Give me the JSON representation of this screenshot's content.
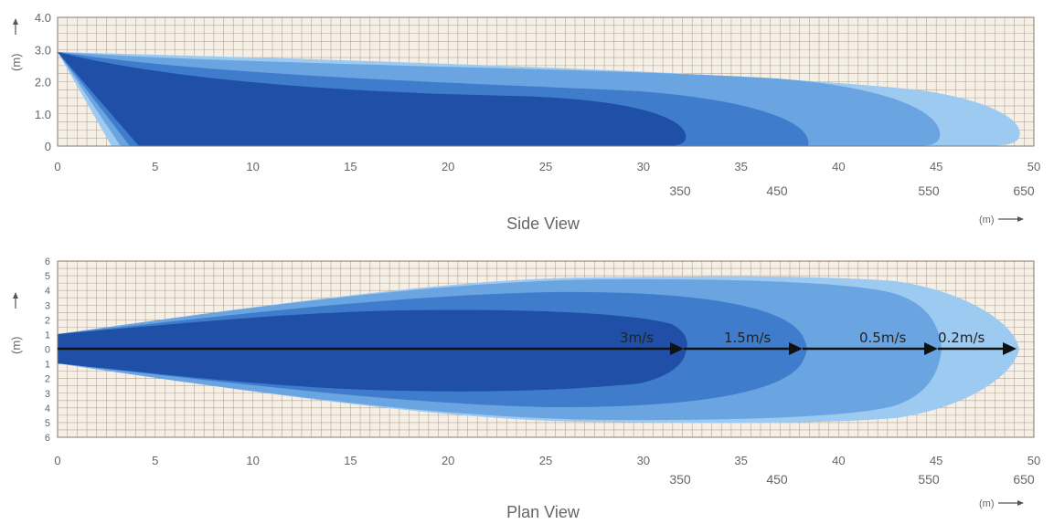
{
  "colors": {
    "grid_line": "#9a8a7a",
    "background": "#f5efe6",
    "zone_3": "#1f4fa6",
    "zone_1_5": "#3f7dcc",
    "zone_0_5": "#6aa5e2",
    "zone_0_2": "#9dcaf1",
    "arrow": "#111111"
  },
  "side_view": {
    "title": "Side View",
    "y_unit": "(m)",
    "y_ticks": [
      "4.0",
      "3.0",
      "2.0",
      "1.0",
      "0"
    ],
    "x_ticks": [
      "0",
      "5",
      "10",
      "15",
      "20",
      "25",
      "30",
      "35",
      "40",
      "45",
      "50"
    ],
    "secondary_ticks": [
      "350",
      "450",
      "550",
      "650"
    ],
    "x_unit": "(m)"
  },
  "plan_view": {
    "title": "Plan View",
    "y_unit": "(m)",
    "y_ticks": [
      "6",
      "5",
      "4",
      "3",
      "2",
      "1",
      "0",
      "1",
      "2",
      "3",
      "4",
      "5",
      "6"
    ],
    "x_ticks": [
      "0",
      "5",
      "10",
      "15",
      "20",
      "25",
      "30",
      "35",
      "40",
      "45",
      "50"
    ],
    "secondary_ticks": [
      "350",
      "450",
      "550",
      "650"
    ],
    "x_unit": "(m)",
    "velocity_labels": [
      "3m/s",
      "1.5m/s",
      "0.5m/s",
      "0.2m/s"
    ]
  }
}
